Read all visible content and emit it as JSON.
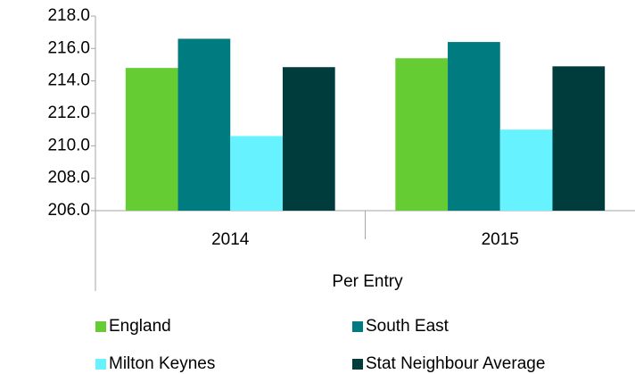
{
  "chart_data": {
    "type": "bar",
    "categories": [
      "2014",
      "2015"
    ],
    "xlabel": "Per Entry",
    "series": [
      {
        "name": "England",
        "color": "#66cc33",
        "values": [
          214.8,
          215.4
        ]
      },
      {
        "name": "South East",
        "color": "#007b80",
        "values": [
          216.6,
          216.4
        ]
      },
      {
        "name": "Milton Keynes",
        "color": "#66f3ff",
        "values": [
          210.6,
          211.0
        ]
      },
      {
        "name": "Stat Neighbour Average",
        "color": "#003c3c",
        "values": [
          214.85,
          214.9
        ]
      }
    ],
    "ylim": [
      206,
      218
    ],
    "yticks": [
      {
        "value": 206,
        "label": "206.0"
      },
      {
        "value": 208,
        "label": "208.0"
      },
      {
        "value": 210,
        "label": "210.0"
      },
      {
        "value": 212,
        "label": "212.0"
      },
      {
        "value": 214,
        "label": "214.0"
      },
      {
        "value": 216,
        "label": "216.0"
      },
      {
        "value": 218,
        "label": "218.0"
      }
    ],
    "legend": "bottom"
  }
}
